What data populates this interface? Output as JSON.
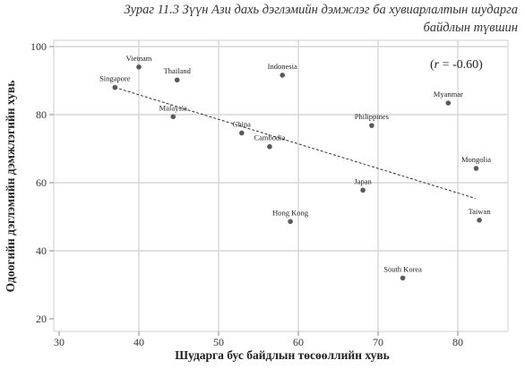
{
  "chart_data": {
    "type": "scatter",
    "title_lines": [
      "Зураг 11.3 Зүүн Ази дахь дэглэмийн дэмжлэг ба хувиарлалтын шударга",
      "байдлын түвшин"
    ],
    "xlabel": "Шударга бус байдлын төсөөллийн хувь",
    "ylabel": "Одоогийн дэглэмийн дэмжлэгийн хувь",
    "xlim": [
      30,
      83
    ],
    "ylim": [
      20,
      100
    ],
    "xticks": [
      30,
      40,
      50,
      60,
      70,
      80
    ],
    "yticks": [
      20,
      40,
      60,
      80,
      100
    ],
    "grid": true,
    "annotation": "(r = -0.60)",
    "annotation_parts": {
      "open": "(",
      "var": "r",
      "rest": " = -0.60)"
    },
    "points": [
      {
        "label": "Vietnam",
        "x": 40.0,
        "y": 94.0
      },
      {
        "label": "Singapore",
        "x": 37.0,
        "y": 88.0
      },
      {
        "label": "Thailand",
        "x": 44.8,
        "y": 90.2
      },
      {
        "label": "Indonesia",
        "x": 58.0,
        "y": 91.6
      },
      {
        "label": "Myanmar",
        "x": 78.8,
        "y": 83.4
      },
      {
        "label": "Malaysia",
        "x": 44.3,
        "y": 79.4
      },
      {
        "label": "Philippines",
        "x": 69.2,
        "y": 76.8
      },
      {
        "label": "China",
        "x": 52.9,
        "y": 74.6
      },
      {
        "label": "Cambodia",
        "x": 56.4,
        "y": 70.6
      },
      {
        "label": "Mongolia",
        "x": 82.3,
        "y": 64.2
      },
      {
        "label": "Japan",
        "x": 68.1,
        "y": 57.8
      },
      {
        "label": "Taiwan",
        "x": 82.7,
        "y": 49.0
      },
      {
        "label": "Hong Kong",
        "x": 59.0,
        "y": 48.6
      },
      {
        "label": "South Korea",
        "x": 73.1,
        "y": 32.0
      }
    ],
    "trendline": {
      "x1": 37.0,
      "y1": 88.0,
      "x2": 82.2,
      "y2": 55.4
    }
  }
}
